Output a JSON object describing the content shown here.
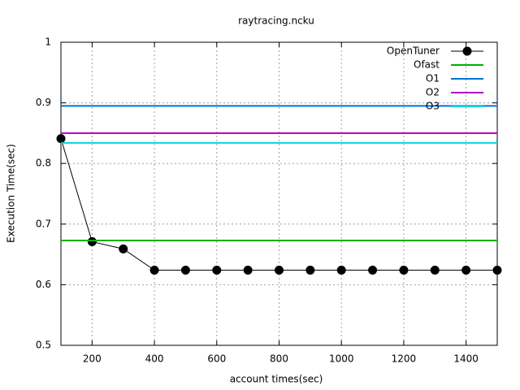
{
  "chart_data": {
    "type": "line",
    "title": "raytracing.ncku",
    "xlabel": "account times(sec)",
    "ylabel": "Execution Time(sec)",
    "x": [
      100,
      200,
      300,
      400,
      500,
      600,
      700,
      800,
      900,
      1000,
      1100,
      1200,
      1300,
      1400,
      1500
    ],
    "series": [
      {
        "name": "OpenTuner",
        "color": "#000000",
        "values": [
          0.841,
          0.671,
          0.659,
          0.624,
          0.624,
          0.624,
          0.624,
          0.624,
          0.624,
          0.624,
          0.624,
          0.624,
          0.624,
          0.624,
          0.624
        ]
      }
    ],
    "reference_lines": [
      {
        "name": "Ofast",
        "color": "#00b000",
        "value": 0.673
      },
      {
        "name": "O1",
        "color": "#0072dd",
        "value": 0.895
      },
      {
        "name": "O2",
        "color": "#b000c8",
        "value": 0.85
      },
      {
        "name": "O3",
        "color": "#00d8d8",
        "value": 0.834
      }
    ],
    "xlim": [
      100,
      1500
    ],
    "ylim": [
      0.5,
      1
    ],
    "xticks": [
      200,
      400,
      600,
      800,
      1000,
      1200,
      1400
    ],
    "yticks": [
      0.5,
      0.6,
      0.7,
      0.8,
      0.9,
      1
    ],
    "grid": true,
    "legend": "top-right"
  }
}
